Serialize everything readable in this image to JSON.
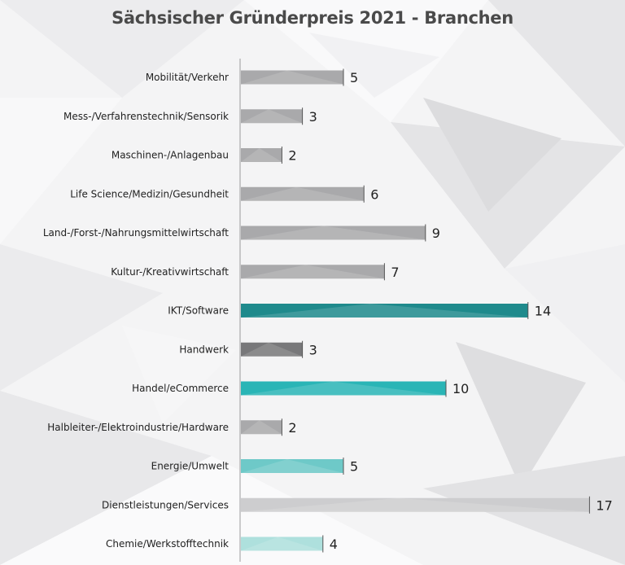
{
  "chart_data": {
    "type": "bar",
    "orientation": "horizontal",
    "title": "Sächsischer Gründerpreis 2021 - Branchen",
    "xlabel": "",
    "ylabel": "",
    "xlim": [
      0,
      17
    ],
    "grid": false,
    "legend": "none",
    "categories": [
      "Mobilität/Verkehr",
      "Mess-/Verfahrenstechnik/Sensorik",
      "Maschinen-/Anlagenbau",
      "Life Science/Medizin/Gesundheit",
      "Land-/Forst-/Nahrungsmittelwirtschaft",
      "Kultur-/Kreativwirtschaft",
      "IKT/Software",
      "Handwerk",
      "Handel/eCommerce",
      "Halbleiter-/Elektroindustrie/Hardware",
      "Energie/Umwelt",
      "Dienstleistungen/Services",
      "Chemie/Werkstofftechnik"
    ],
    "values": [
      5,
      3,
      2,
      6,
      9,
      7,
      14,
      3,
      10,
      2,
      5,
      17,
      4
    ],
    "bar_colors": [
      "#a9a9ab",
      "#a9a9ab",
      "#a9a9ab",
      "#a9a9ab",
      "#a9a9ab",
      "#a9a9ab",
      "#1f8a8c",
      "#78787a",
      "#2ab5b6",
      "#a9a9ab",
      "#6ec9c8",
      "#cdcdcf",
      "#aee0dd"
    ]
  }
}
